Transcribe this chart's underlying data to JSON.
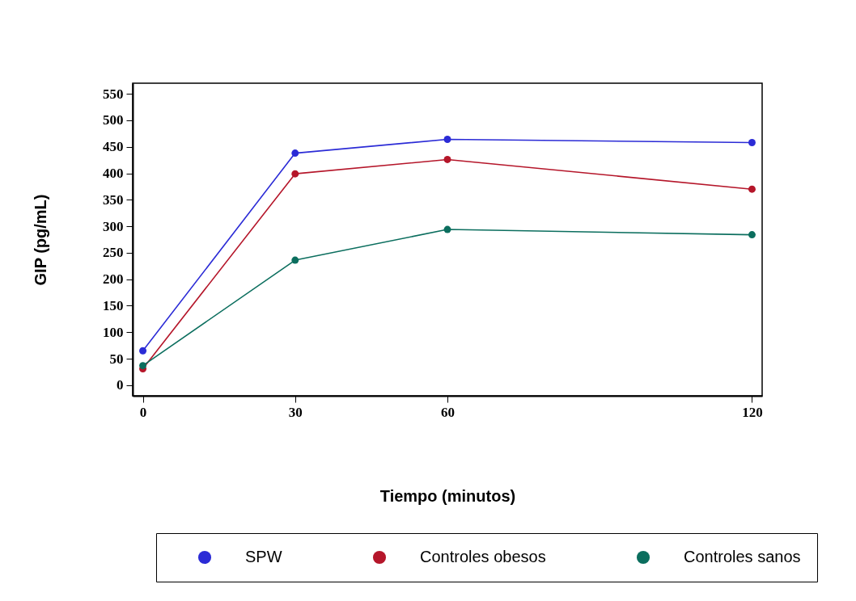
{
  "chart_data": {
    "type": "line",
    "xlabel": "Tiempo (minutos)",
    "ylabel": "GIP (pg/mL)",
    "x": [
      0,
      30,
      60,
      120
    ],
    "xlim": [
      -2,
      122
    ],
    "xticks": [
      0,
      30,
      60,
      120
    ],
    "ylim": [
      -20,
      570
    ],
    "yticks": [
      0,
      50,
      100,
      150,
      200,
      250,
      300,
      350,
      400,
      450,
      500,
      550
    ],
    "grid": false,
    "legend": "bottom",
    "marker": "circle",
    "line_style": "solid",
    "series": [
      {
        "name": "SPW",
        "color": "#2b2bd6",
        "values": [
          65,
          438,
          464,
          458
        ]
      },
      {
        "name": "Controles obesos",
        "color": "#b5162a",
        "values": [
          31,
          399,
          426,
          370
        ]
      },
      {
        "name": "Controles sanos",
        "color": "#0b6e5e",
        "values": [
          37,
          236,
          294,
          284
        ]
      }
    ]
  }
}
